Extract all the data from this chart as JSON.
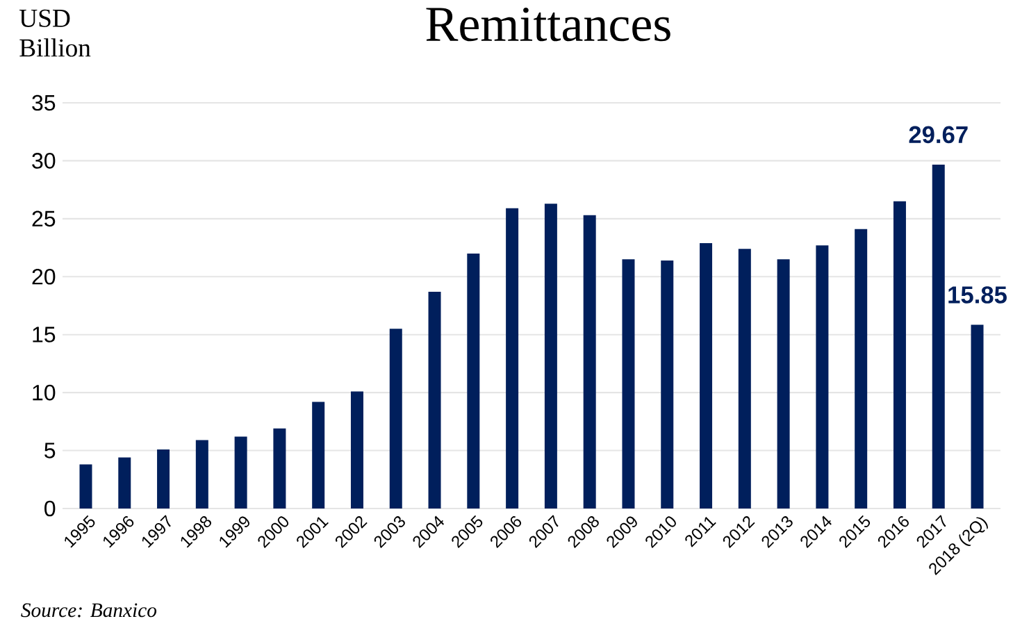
{
  "chart_data": {
    "type": "bar",
    "title": "Remittances",
    "ylabel": "USD Billion",
    "categories": [
      "1995",
      "1996",
      "1997",
      "1998",
      "1999",
      "2000",
      "2001",
      "2002",
      "2003",
      "2004",
      "2005",
      "2006",
      "2007",
      "2008",
      "2009",
      "2010",
      "2011",
      "2012",
      "2013",
      "2014",
      "2015",
      "2016",
      "2017",
      "2018 (2Q)"
    ],
    "values": [
      3.8,
      4.4,
      5.1,
      5.9,
      6.2,
      6.9,
      9.2,
      10.1,
      15.5,
      18.7,
      22.0,
      25.9,
      26.3,
      25.3,
      21.5,
      21.4,
      22.9,
      22.4,
      21.5,
      22.7,
      24.1,
      26.5,
      29.67,
      15.85
    ],
    "value_labels": [
      null,
      null,
      null,
      null,
      null,
      null,
      null,
      null,
      null,
      null,
      null,
      null,
      null,
      null,
      null,
      null,
      null,
      null,
      null,
      null,
      null,
      null,
      "29.67",
      "15.85"
    ],
    "color": "#001f5c",
    "ylim": [
      0,
      35
    ],
    "yticks": [
      0,
      5,
      10,
      15,
      20,
      25,
      30,
      35
    ],
    "grid": "y",
    "annotations": [
      "Source: Banxico"
    ]
  }
}
